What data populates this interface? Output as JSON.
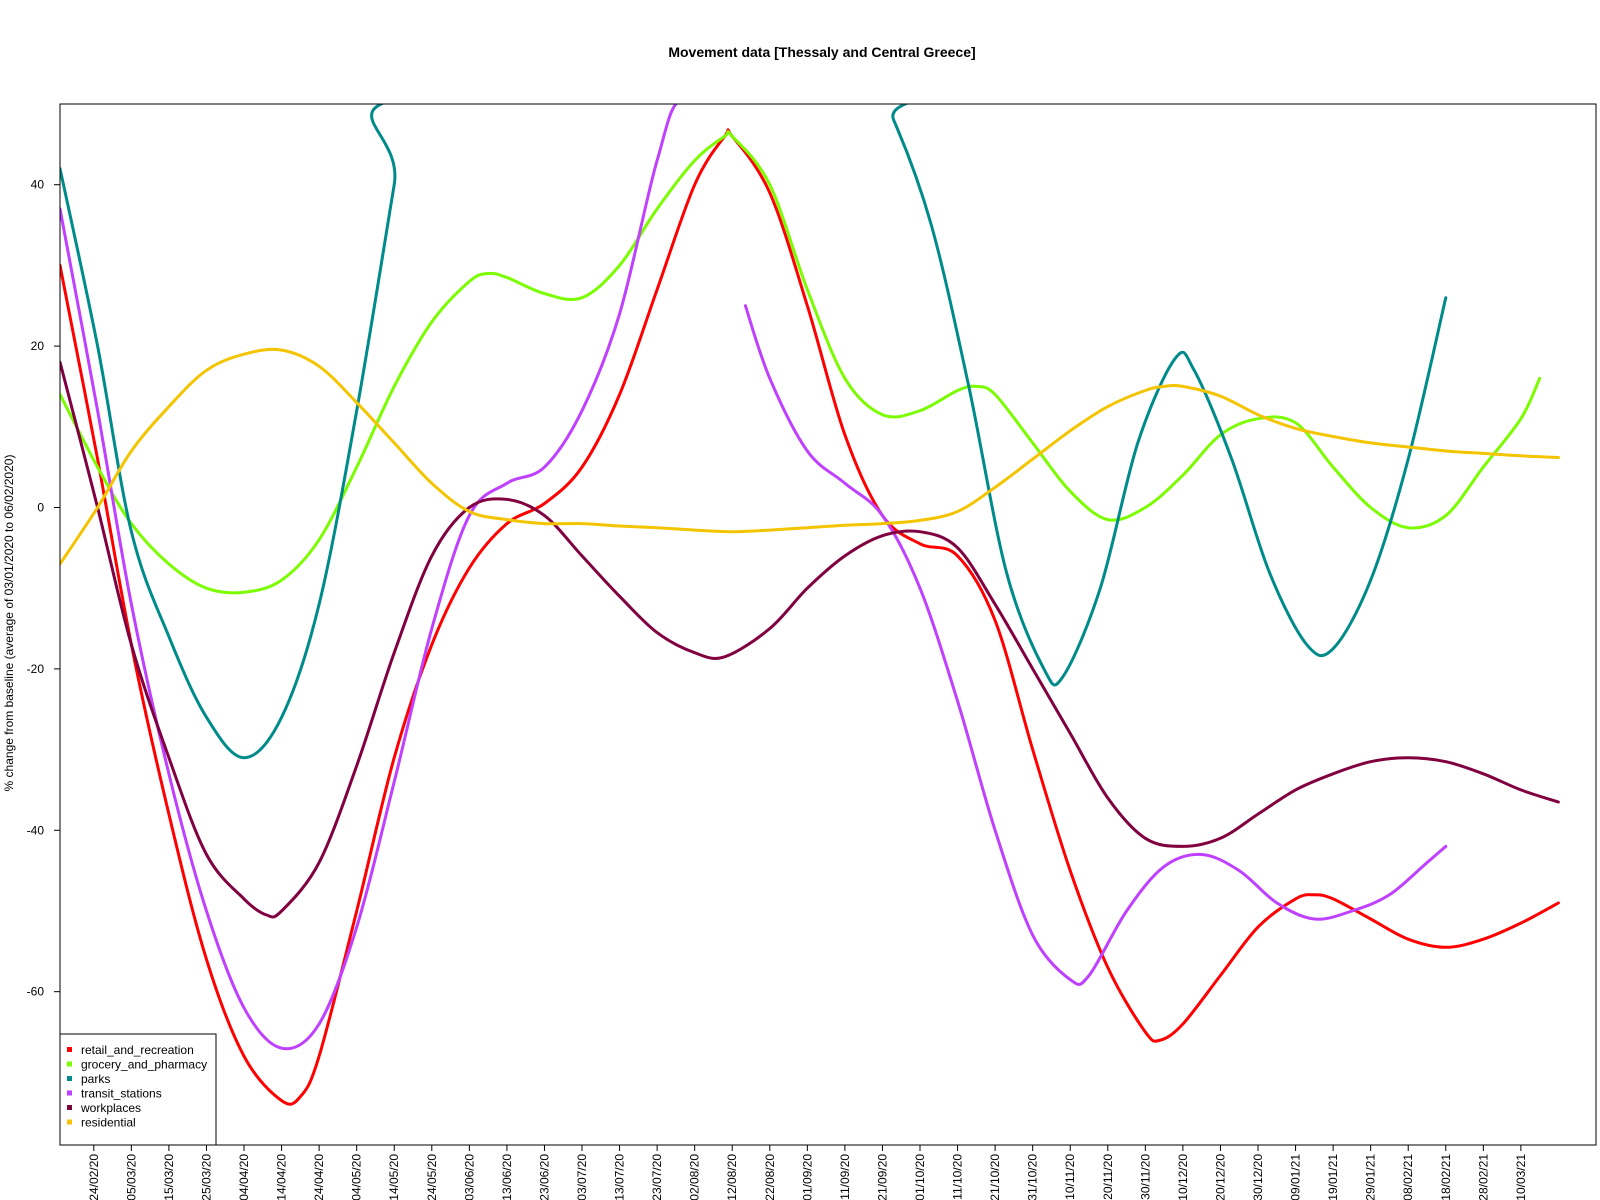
{
  "chart_data": {
    "type": "line",
    "title": "Movement data [Thessaly and Central Greece]",
    "xlabel": "",
    "ylabel": "% change from baseline (average of 03/01/2020 to 06/02/2020)",
    "ylim": [
      -79,
      50
    ],
    "y_ticks": [
      -60,
      -40,
      -20,
      0,
      20,
      40
    ],
    "x_start": "2020-02-15",
    "x_end": "2021-03-30",
    "x_ticks": [
      "24/02/20",
      "05/03/20",
      "15/03/20",
      "25/03/20",
      "04/04/20",
      "14/04/20",
      "24/04/20",
      "04/05/20",
      "14/05/20",
      "24/05/20",
      "03/06/20",
      "13/06/20",
      "23/06/20",
      "03/07/20",
      "13/07/20",
      "23/07/20",
      "02/08/20",
      "12/08/20",
      "22/08/20",
      "01/09/20",
      "11/09/20",
      "21/09/20",
      "01/10/20",
      "11/10/20",
      "21/10/20",
      "31/10/20",
      "10/11/20",
      "20/11/20",
      "30/11/20",
      "10/12/20",
      "20/12/20",
      "30/12/20",
      "09/01/21",
      "19/01/21",
      "29/01/21",
      "08/02/21",
      "18/02/21",
      "28/02/21",
      "10/03/21"
    ],
    "grid": false,
    "legend_position": "bottom-left",
    "series": [
      {
        "name": "retail_and_recreation",
        "color": "#ff0000",
        "points": [
          [
            "2020-02-15",
            30
          ],
          [
            "2020-02-25",
            6
          ],
          [
            "2020-03-05",
            -17
          ],
          [
            "2020-03-15",
            -38
          ],
          [
            "2020-03-25",
            -56
          ],
          [
            "2020-04-04",
            -68
          ],
          [
            "2020-04-14",
            -73.5
          ],
          [
            "2020-04-19",
            -73
          ],
          [
            "2020-04-24",
            -68
          ],
          [
            "2020-05-04",
            -50
          ],
          [
            "2020-05-14",
            -31
          ],
          [
            "2020-05-24",
            -17
          ],
          [
            "2020-06-03",
            -7.5
          ],
          [
            "2020-06-13",
            -2
          ],
          [
            "2020-06-23",
            0.5
          ],
          [
            "2020-07-03",
            5
          ],
          [
            "2020-07-13",
            14
          ],
          [
            "2020-07-23",
            27
          ],
          [
            "2020-08-02",
            40
          ],
          [
            "2020-08-10",
            46
          ],
          [
            "2020-08-12",
            46
          ],
          [
            "2020-08-22",
            39
          ],
          [
            "2020-09-01",
            25
          ],
          [
            "2020-09-11",
            9
          ],
          [
            "2020-09-21",
            -1
          ],
          [
            "2020-10-01",
            -4.5
          ],
          [
            "2020-10-11",
            -6
          ],
          [
            "2020-10-21",
            -14
          ],
          [
            "2020-10-31",
            -30
          ],
          [
            "2020-11-10",
            -45
          ],
          [
            "2020-11-20",
            -57
          ],
          [
            "2020-11-30",
            -65
          ],
          [
            "2020-12-04",
            -66
          ],
          [
            "2020-12-10",
            -64
          ],
          [
            "2020-12-20",
            -58
          ],
          [
            "2020-12-30",
            -52
          ],
          [
            "2021-01-09",
            -48.5
          ],
          [
            "2021-01-14",
            -48
          ],
          [
            "2021-01-19",
            -48.5
          ],
          [
            "2021-01-29",
            -51
          ],
          [
            "2021-02-08",
            -53.5
          ],
          [
            "2021-02-18",
            -54.5
          ],
          [
            "2021-02-28",
            -53.5
          ],
          [
            "2021-03-10",
            -51.5
          ],
          [
            "2021-03-20",
            -49
          ]
        ]
      },
      {
        "name": "grocery_and_pharmacy",
        "color": "#7cfc00",
        "points": [
          [
            "2020-02-15",
            14
          ],
          [
            "2020-02-25",
            5
          ],
          [
            "2020-03-05",
            -2
          ],
          [
            "2020-03-15",
            -7
          ],
          [
            "2020-03-25",
            -10
          ],
          [
            "2020-04-04",
            -10.5
          ],
          [
            "2020-04-14",
            -9
          ],
          [
            "2020-04-24",
            -4
          ],
          [
            "2020-05-04",
            5
          ],
          [
            "2020-05-14",
            15
          ],
          [
            "2020-05-24",
            23
          ],
          [
            "2020-06-03",
            28
          ],
          [
            "2020-06-08",
            29
          ],
          [
            "2020-06-13",
            28.5
          ],
          [
            "2020-06-23",
            26.5
          ],
          [
            "2020-07-03",
            26
          ],
          [
            "2020-07-13",
            30
          ],
          [
            "2020-07-23",
            37
          ],
          [
            "2020-08-02",
            43
          ],
          [
            "2020-08-10",
            46
          ],
          [
            "2020-08-12",
            46
          ],
          [
            "2020-08-22",
            40
          ],
          [
            "2020-09-01",
            27
          ],
          [
            "2020-09-11",
            16
          ],
          [
            "2020-09-21",
            11.5
          ],
          [
            "2020-10-01",
            12
          ],
          [
            "2020-10-11",
            14.5
          ],
          [
            "2020-10-16",
            15
          ],
          [
            "2020-10-21",
            14
          ],
          [
            "2020-10-31",
            8
          ],
          [
            "2020-11-10",
            2
          ],
          [
            "2020-11-20",
            -1.5
          ],
          [
            "2020-11-30",
            0
          ],
          [
            "2020-12-10",
            4
          ],
          [
            "2020-12-20",
            9
          ],
          [
            "2020-12-30",
            11
          ],
          [
            "2021-01-09",
            10.5
          ],
          [
            "2021-01-19",
            5
          ],
          [
            "2021-01-29",
            0
          ],
          [
            "2021-02-08",
            -2.5
          ],
          [
            "2021-02-18",
            -1
          ],
          [
            "2021-02-28",
            5
          ],
          [
            "2021-03-10",
            11
          ],
          [
            "2021-03-15",
            16
          ]
        ]
      },
      {
        "name": "parks",
        "color": "#008b8b",
        "points": [
          [
            "2020-02-15",
            42
          ],
          [
            "2020-02-25",
            20
          ],
          [
            "2020-03-05",
            -3
          ],
          [
            "2020-03-15",
            -16
          ],
          [
            "2020-03-25",
            -26
          ],
          [
            "2020-04-04",
            -31
          ],
          [
            "2020-04-14",
            -26
          ],
          [
            "2020-04-24",
            -12
          ],
          [
            "2020-05-04",
            12
          ],
          [
            "2020-05-14",
            40
          ],
          [
            "2020-05-18",
            51
          ],
          [
            "2020-09-19",
            51
          ],
          [
            "2020-09-24",
            48
          ],
          [
            "2020-10-04",
            35
          ],
          [
            "2020-10-14",
            15
          ],
          [
            "2020-10-24",
            -8
          ],
          [
            "2020-11-03",
            -20
          ],
          [
            "2020-11-08",
            -21
          ],
          [
            "2020-11-18",
            -10
          ],
          [
            "2020-11-28",
            8
          ],
          [
            "2020-12-08",
            18.5
          ],
          [
            "2020-12-13",
            17
          ],
          [
            "2020-12-23",
            6
          ],
          [
            "2021-01-02",
            -8
          ],
          [
            "2021-01-12",
            -17
          ],
          [
            "2021-01-19",
            -17.5
          ],
          [
            "2021-01-29",
            -9
          ],
          [
            "2021-02-08",
            6
          ],
          [
            "2021-02-18",
            26
          ]
        ]
      },
      {
        "name": "transit_stations",
        "color": "#bf40ff",
        "points": [
          [
            "2020-02-15",
            37
          ],
          [
            "2020-02-25",
            12
          ],
          [
            "2020-03-05",
            -12
          ],
          [
            "2020-03-15",
            -33
          ],
          [
            "2020-03-25",
            -50
          ],
          [
            "2020-04-04",
            -62
          ],
          [
            "2020-04-14",
            -67
          ],
          [
            "2020-04-24",
            -64
          ],
          [
            "2020-05-04",
            -52
          ],
          [
            "2020-05-14",
            -34
          ],
          [
            "2020-05-24",
            -15
          ],
          [
            "2020-06-03",
            -1
          ],
          [
            "2020-06-13",
            3
          ],
          [
            "2020-06-23",
            5
          ],
          [
            "2020-07-03",
            12
          ],
          [
            "2020-07-13",
            24
          ],
          [
            "2020-07-23",
            43
          ],
          [
            "2020-07-30",
            51
          ],
          [
            "2020-08-15",
            51
          ],
          [
            "2020-08-15.5",
            25
          ],
          [
            "2020-08-22",
            16
          ],
          [
            "2020-09-01",
            7
          ],
          [
            "2020-09-11",
            3
          ],
          [
            "2020-09-21",
            -1
          ],
          [
            "2020-10-01",
            -10
          ],
          [
            "2020-10-11",
            -24
          ],
          [
            "2020-10-21",
            -40
          ],
          [
            "2020-10-31",
            -53
          ],
          [
            "2020-11-10",
            -58.5
          ],
          [
            "2020-11-15",
            -58
          ],
          [
            "2020-11-25",
            -50
          ],
          [
            "2020-12-05",
            -44.5
          ],
          [
            "2020-12-15",
            -43
          ],
          [
            "2020-12-25",
            -45
          ],
          [
            "2021-01-04",
            -49
          ],
          [
            "2021-01-14",
            -51
          ],
          [
            "2021-01-24",
            -50
          ],
          [
            "2021-02-03",
            -48
          ],
          [
            "2021-02-13",
            -44
          ],
          [
            "2021-02-18",
            -42
          ]
        ]
      },
      {
        "name": "workplaces",
        "color": "#800040",
        "points": [
          [
            "2020-02-15",
            18
          ],
          [
            "2020-02-25",
            0
          ],
          [
            "2020-03-05",
            -17
          ],
          [
            "2020-03-15",
            -31
          ],
          [
            "2020-03-25",
            -43
          ],
          [
            "2020-04-04",
            -48.5
          ],
          [
            "2020-04-10",
            -50.5
          ],
          [
            "2020-04-14",
            -50
          ],
          [
            "2020-04-24",
            -44
          ],
          [
            "2020-05-04",
            -32
          ],
          [
            "2020-05-14",
            -18
          ],
          [
            "2020-05-24",
            -6
          ],
          [
            "2020-06-03",
            0
          ],
          [
            "2020-06-13",
            1
          ],
          [
            "2020-06-23",
            -1
          ],
          [
            "2020-07-03",
            -6
          ],
          [
            "2020-07-13",
            -11
          ],
          [
            "2020-07-23",
            -15.5
          ],
          [
            "2020-08-02",
            -18
          ],
          [
            "2020-08-10",
            -18.5
          ],
          [
            "2020-08-22",
            -15
          ],
          [
            "2020-09-01",
            -10
          ],
          [
            "2020-09-11",
            -6
          ],
          [
            "2020-09-21",
            -3.5
          ],
          [
            "2020-10-01",
            -3
          ],
          [
            "2020-10-11",
            -5
          ],
          [
            "2020-10-21",
            -12
          ],
          [
            "2020-10-31",
            -20
          ],
          [
            "2020-11-10",
            -28
          ],
          [
            "2020-11-20",
            -36
          ],
          [
            "2020-11-30",
            -41
          ],
          [
            "2020-12-10",
            -42
          ],
          [
            "2020-12-20",
            -41
          ],
          [
            "2020-12-30",
            -38
          ],
          [
            "2021-01-09",
            -35
          ],
          [
            "2021-01-19",
            -33
          ],
          [
            "2021-01-29",
            -31.5
          ],
          [
            "2021-02-08",
            -31
          ],
          [
            "2021-02-18",
            -31.5
          ],
          [
            "2021-02-28",
            -33
          ],
          [
            "2021-03-10",
            -35
          ],
          [
            "2021-03-20",
            -36.5
          ]
        ]
      },
      {
        "name": "residential",
        "color": "#f5c400",
        "points": [
          [
            "2020-02-15",
            -7
          ],
          [
            "2020-02-25",
            0
          ],
          [
            "2020-03-05",
            7
          ],
          [
            "2020-03-15",
            12.5
          ],
          [
            "2020-03-25",
            17
          ],
          [
            "2020-04-04",
            19
          ],
          [
            "2020-04-14",
            19.5
          ],
          [
            "2020-04-24",
            17.5
          ],
          [
            "2020-05-04",
            13
          ],
          [
            "2020-05-14",
            8
          ],
          [
            "2020-05-24",
            3
          ],
          [
            "2020-06-03",
            -0.5
          ],
          [
            "2020-06-13",
            -1.5
          ],
          [
            "2020-06-23",
            -2
          ],
          [
            "2020-07-03",
            -2
          ],
          [
            "2020-07-13",
            -2.3
          ],
          [
            "2020-07-23",
            -2.5
          ],
          [
            "2020-08-02",
            -2.8
          ],
          [
            "2020-08-12",
            -3
          ],
          [
            "2020-08-22",
            -2.8
          ],
          [
            "2020-09-01",
            -2.5
          ],
          [
            "2020-09-11",
            -2.2
          ],
          [
            "2020-09-21",
            -2
          ],
          [
            "2020-10-01",
            -1.6
          ],
          [
            "2020-10-11",
            -0.5
          ],
          [
            "2020-10-21",
            2.5
          ],
          [
            "2020-10-31",
            6
          ],
          [
            "2020-11-10",
            9.5
          ],
          [
            "2020-11-20",
            12.5
          ],
          [
            "2020-11-30",
            14.5
          ],
          [
            "2020-12-05",
            15
          ],
          [
            "2020-12-10",
            15
          ],
          [
            "2020-12-20",
            13.8
          ],
          [
            "2020-12-30",
            11.5
          ],
          [
            "2021-01-09",
            9.8
          ],
          [
            "2021-01-19",
            8.8
          ],
          [
            "2021-01-29",
            8
          ],
          [
            "2021-02-08",
            7.5
          ],
          [
            "2021-02-18",
            7
          ],
          [
            "2021-02-28",
            6.7
          ],
          [
            "2021-03-10",
            6.4
          ],
          [
            "2021-03-20",
            6.2
          ]
        ]
      }
    ]
  }
}
